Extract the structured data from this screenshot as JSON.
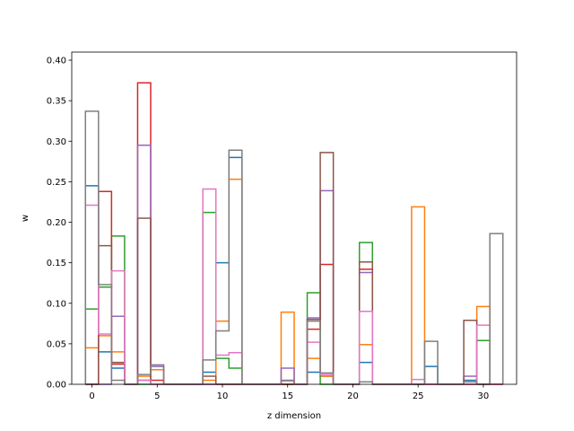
{
  "chart_data": {
    "type": "step-histogram",
    "title": "",
    "xlabel": "z dimension",
    "ylabel": "w",
    "xlim": [
      -1.55,
      32.55
    ],
    "ylim": [
      0,
      0.41
    ],
    "xticks": [
      0,
      5,
      10,
      15,
      20,
      25,
      30
    ],
    "yticks": [
      0.0,
      0.05,
      0.1,
      0.15,
      0.2,
      0.25,
      0.3,
      0.35,
      0.4
    ],
    "ytick_labels": [
      "0.00",
      "0.05",
      "0.10",
      "0.15",
      "0.20",
      "0.25",
      "0.30",
      "0.35",
      "0.40"
    ],
    "bin_edges": [
      -0.5,
      0.5,
      1.5,
      2.5,
      3.5,
      4.5,
      5.5,
      6.5,
      7.5,
      8.5,
      9.5,
      10.5,
      11.5,
      12.5,
      13.5,
      14.5,
      15.5,
      16.5,
      17.5,
      18.5,
      19.5,
      20.5,
      21.5,
      22.5,
      23.5,
      24.5,
      25.5,
      26.5,
      27.5,
      28.5,
      29.5,
      30.5,
      31.5
    ],
    "grid": false,
    "legend": false,
    "series": [
      {
        "color": "#1f77b4",
        "values": [
          0.245,
          0.04,
          0.02,
          0,
          0.005,
          0,
          0,
          0,
          0,
          0.015,
          0.15,
          0.28,
          0,
          0,
          0,
          0,
          0,
          0.015,
          0.01,
          0,
          0,
          0.027,
          0,
          0,
          0,
          0,
          0.022,
          0,
          0,
          0.005,
          0,
          0
        ]
      },
      {
        "color": "#ff7f0e",
        "values": [
          0.045,
          0.06,
          0.04,
          0,
          0.01,
          0.018,
          0,
          0,
          0,
          0.005,
          0.078,
          0.253,
          0,
          0,
          0,
          0.089,
          0,
          0.032,
          0.01,
          0,
          0,
          0.049,
          0,
          0,
          0,
          0.219,
          0,
          0,
          0,
          0,
          0.096,
          0
        ]
      },
      {
        "color": "#2ca02c",
        "values": [
          0.093,
          0.12,
          0.183,
          0,
          0,
          0,
          0,
          0,
          0,
          0.212,
          0.032,
          0.02,
          0,
          0,
          0,
          0,
          0,
          0.113,
          0,
          0,
          0,
          0.175,
          0,
          0,
          0,
          0,
          0,
          0,
          0,
          0,
          0.054,
          0
        ]
      },
      {
        "color": "#d62728",
        "values": [
          0,
          0.238,
          0.025,
          0,
          0.372,
          0.005,
          0,
          0,
          0,
          0,
          0,
          0,
          0,
          0,
          0,
          0,
          0,
          0.068,
          0.148,
          0,
          0,
          0.142,
          0,
          0,
          0,
          0,
          0,
          0,
          0,
          0,
          0,
          0
        ]
      },
      {
        "color": "#9467bd",
        "values": [
          0,
          0,
          0.084,
          0,
          0.295,
          0.022,
          0,
          0,
          0,
          0,
          0,
          0,
          0,
          0,
          0,
          0.02,
          0,
          0.082,
          0.239,
          0,
          0,
          0.138,
          0,
          0,
          0,
          0,
          0,
          0,
          0,
          0.01,
          0,
          0
        ]
      },
      {
        "color": "#8c564b",
        "values": [
          0,
          0.171,
          0.027,
          0,
          0.205,
          0,
          0,
          0,
          0,
          0.01,
          0,
          0,
          0,
          0,
          0,
          0,
          0,
          0.08,
          0.286,
          0,
          0,
          0.151,
          0,
          0,
          0,
          0,
          0,
          0,
          0,
          0.079,
          0,
          0
        ]
      },
      {
        "color": "#e377c2",
        "values": [
          0.221,
          0.062,
          0.14,
          0,
          0.005,
          0,
          0,
          0,
          0,
          0.241,
          0.036,
          0.039,
          0,
          0,
          0,
          0.004,
          0,
          0.052,
          0.012,
          0,
          0,
          0.09,
          0,
          0,
          0,
          0.006,
          0,
          0,
          0,
          0,
          0.073,
          0
        ]
      },
      {
        "color": "#7f7f7f",
        "values": [
          0.337,
          0.123,
          0.005,
          0,
          0.012,
          0.024,
          0,
          0,
          0,
          0.03,
          0.066,
          0.289,
          0,
          0,
          0,
          0.005,
          0,
          0.078,
          0.014,
          0,
          0,
          0.003,
          0,
          0,
          0,
          0,
          0.053,
          0,
          0,
          0.003,
          0,
          0.186
        ]
      }
    ]
  }
}
